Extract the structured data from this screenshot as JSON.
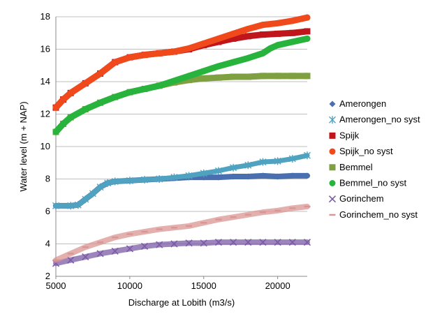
{
  "chart_data": {
    "type": "scatter",
    "title": "",
    "xlabel": "Discharge at Lobith (m3/s)",
    "ylabel": "Water level (m + NAP)",
    "xlim": [
      5000,
      22000
    ],
    "ylim": [
      2,
      18
    ],
    "xticks": [
      5000,
      10000,
      15000,
      20000
    ],
    "yticks": [
      2,
      4,
      6,
      8,
      10,
      12,
      14,
      16,
      18
    ],
    "grid": "horizontal",
    "legend_position": "right",
    "series": [
      {
        "name": "Amerongen",
        "color": "#4a6fb0",
        "marker": "diamond",
        "points": [
          [
            5000,
            6.35
          ],
          [
            6000,
            6.35
          ],
          [
            6500,
            6.4
          ],
          [
            7000,
            6.75
          ],
          [
            7500,
            7.1
          ],
          [
            8000,
            7.5
          ],
          [
            8500,
            7.75
          ],
          [
            9000,
            7.85
          ],
          [
            10000,
            7.9
          ],
          [
            11000,
            7.95
          ],
          [
            12000,
            8.0
          ],
          [
            13000,
            8.05
          ],
          [
            14000,
            8.1
          ],
          [
            15000,
            8.1
          ],
          [
            16000,
            8.1
          ],
          [
            17000,
            8.15
          ],
          [
            18000,
            8.15
          ],
          [
            19000,
            8.2
          ],
          [
            20000,
            8.15
          ],
          [
            21000,
            8.2
          ],
          [
            22000,
            8.2
          ]
        ]
      },
      {
        "name": "Amerongen_no syst",
        "color": "#4fa3c0",
        "marker": "star",
        "points": [
          [
            5000,
            6.35
          ],
          [
            6000,
            6.35
          ],
          [
            6500,
            6.4
          ],
          [
            7000,
            6.75
          ],
          [
            7500,
            7.1
          ],
          [
            8000,
            7.5
          ],
          [
            8500,
            7.75
          ],
          [
            9000,
            7.85
          ],
          [
            10000,
            7.9
          ],
          [
            11000,
            7.95
          ],
          [
            12000,
            8.0
          ],
          [
            13000,
            8.1
          ],
          [
            14000,
            8.2
          ],
          [
            15000,
            8.35
          ],
          [
            16000,
            8.5
          ],
          [
            17000,
            8.7
          ],
          [
            18000,
            8.85
          ],
          [
            19000,
            9.05
          ],
          [
            20000,
            9.1
          ],
          [
            21000,
            9.25
          ],
          [
            22000,
            9.45
          ]
        ]
      },
      {
        "name": "Spijk",
        "color": "#c0151b",
        "marker": "square",
        "points": [
          [
            5000,
            12.4
          ],
          [
            5500,
            12.9
          ],
          [
            6000,
            13.3
          ],
          [
            7000,
            13.9
          ],
          [
            8000,
            14.5
          ],
          [
            9000,
            15.2
          ],
          [
            10000,
            15.5
          ],
          [
            11000,
            15.65
          ],
          [
            12000,
            15.75
          ],
          [
            13000,
            15.85
          ],
          [
            14000,
            16.0
          ],
          [
            15000,
            16.25
          ],
          [
            16000,
            16.45
          ],
          [
            17000,
            16.65
          ],
          [
            18000,
            16.8
          ],
          [
            19000,
            16.9
          ],
          [
            20000,
            16.95
          ],
          [
            21000,
            17.0
          ],
          [
            22000,
            17.1
          ]
        ]
      },
      {
        "name": "Spijk_no syst",
        "color": "#f04a1c",
        "marker": "circle",
        "points": [
          [
            5000,
            12.4
          ],
          [
            5500,
            12.9
          ],
          [
            6000,
            13.3
          ],
          [
            7000,
            13.9
          ],
          [
            8000,
            14.5
          ],
          [
            9000,
            15.2
          ],
          [
            10000,
            15.5
          ],
          [
            11000,
            15.65
          ],
          [
            12000,
            15.75
          ],
          [
            13000,
            15.85
          ],
          [
            14000,
            16.05
          ],
          [
            15000,
            16.35
          ],
          [
            16000,
            16.65
          ],
          [
            17000,
            16.95
          ],
          [
            18000,
            17.25
          ],
          [
            19000,
            17.5
          ],
          [
            20000,
            17.6
          ],
          [
            21000,
            17.75
          ],
          [
            22000,
            17.95
          ]
        ]
      },
      {
        "name": "Bemmel",
        "color": "#7ea040",
        "marker": "square",
        "points": [
          [
            5000,
            10.9
          ],
          [
            5500,
            11.4
          ],
          [
            6000,
            11.8
          ],
          [
            7000,
            12.3
          ],
          [
            8000,
            12.7
          ],
          [
            9000,
            13.05
          ],
          [
            10000,
            13.35
          ],
          [
            11000,
            13.55
          ],
          [
            12000,
            13.75
          ],
          [
            13000,
            13.95
          ],
          [
            14000,
            14.1
          ],
          [
            15000,
            14.2
          ],
          [
            16000,
            14.25
          ],
          [
            17000,
            14.3
          ],
          [
            18000,
            14.3
          ],
          [
            19000,
            14.35
          ],
          [
            20000,
            14.35
          ],
          [
            21000,
            14.35
          ],
          [
            22000,
            14.35
          ]
        ]
      },
      {
        "name": "Bemmel_no syst",
        "color": "#27b33c",
        "marker": "circle",
        "points": [
          [
            5000,
            10.9
          ],
          [
            5500,
            11.4
          ],
          [
            6000,
            11.8
          ],
          [
            7000,
            12.3
          ],
          [
            8000,
            12.7
          ],
          [
            9000,
            13.05
          ],
          [
            10000,
            13.35
          ],
          [
            11000,
            13.55
          ],
          [
            12000,
            13.75
          ],
          [
            13000,
            14.05
          ],
          [
            14000,
            14.35
          ],
          [
            15000,
            14.65
          ],
          [
            16000,
            14.95
          ],
          [
            17000,
            15.2
          ],
          [
            18000,
            15.45
          ],
          [
            19000,
            15.75
          ],
          [
            19500,
            16.05
          ],
          [
            20000,
            16.25
          ],
          [
            21000,
            16.45
          ],
          [
            22000,
            16.65
          ]
        ]
      },
      {
        "name": "Gorinchem",
        "color": "#7b5ba6",
        "marker": "x",
        "points": [
          [
            5000,
            2.8
          ],
          [
            6000,
            3.0
          ],
          [
            7000,
            3.2
          ],
          [
            8000,
            3.4
          ],
          [
            9000,
            3.55
          ],
          [
            10000,
            3.7
          ],
          [
            11000,
            3.85
          ],
          [
            12000,
            3.95
          ],
          [
            13000,
            4.0
          ],
          [
            14000,
            4.05
          ],
          [
            15000,
            4.05
          ],
          [
            16000,
            4.1
          ],
          [
            17000,
            4.1
          ],
          [
            18000,
            4.1
          ],
          [
            19000,
            4.1
          ],
          [
            20000,
            4.1
          ],
          [
            21000,
            4.1
          ],
          [
            22000,
            4.1
          ]
        ]
      },
      {
        "name": "Gorinchem_no syst",
        "color": "#d99593",
        "marker": "dash",
        "points": [
          [
            5000,
            3.0
          ],
          [
            6000,
            3.4
          ],
          [
            7000,
            3.8
          ],
          [
            8000,
            4.1
          ],
          [
            9000,
            4.4
          ],
          [
            10000,
            4.6
          ],
          [
            11000,
            4.75
          ],
          [
            12000,
            4.9
          ],
          [
            13000,
            5.0
          ],
          [
            14000,
            5.1
          ],
          [
            15000,
            5.3
          ],
          [
            16000,
            5.5
          ],
          [
            17000,
            5.65
          ],
          [
            18000,
            5.8
          ],
          [
            19000,
            5.95
          ],
          [
            20000,
            6.05
          ],
          [
            21000,
            6.2
          ],
          [
            22000,
            6.3
          ]
        ]
      }
    ]
  }
}
